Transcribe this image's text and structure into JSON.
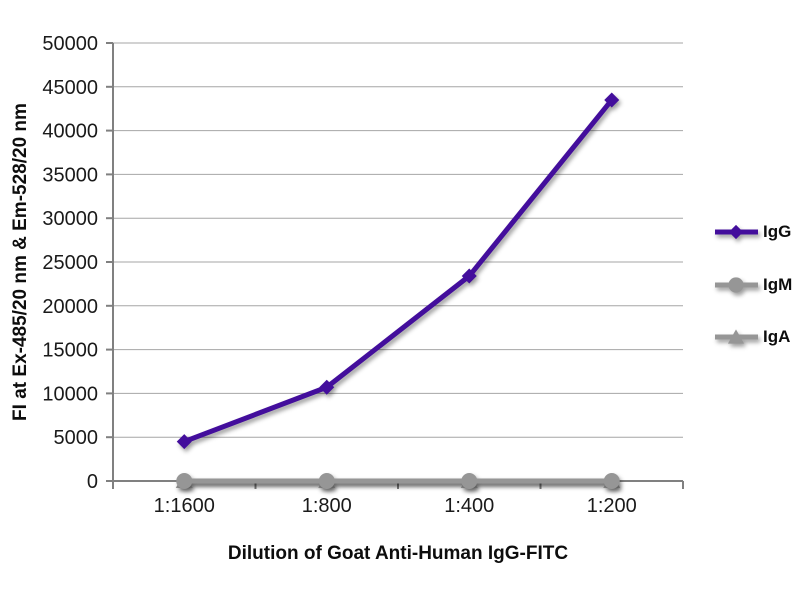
{
  "chart_data": {
    "type": "line",
    "title": "",
    "xlabel": "Dilution of Goat Anti-Human IgG-FITC",
    "ylabel": "FI at Ex-485/20 nm & Em-528/20 nm",
    "categories": [
      "1:1600",
      "1:800",
      "1:400",
      "1:200"
    ],
    "series": [
      {
        "name": "IgG",
        "color": "#430E9C",
        "marker": "diamond",
        "values": [
          4500,
          10700,
          23400,
          43500
        ]
      },
      {
        "name": "IgM",
        "color": "#969696",
        "marker": "circle",
        "values": [
          0,
          0,
          0,
          0
        ]
      },
      {
        "name": "IgA",
        "color": "#969696",
        "marker": "triangle",
        "values": [
          0,
          0,
          0,
          0
        ]
      }
    ],
    "ylim": [
      0,
      50000
    ],
    "ytick_step": 5000,
    "ytick_labels": [
      "0",
      "5000",
      "10000",
      "15000",
      "20000",
      "25000",
      "30000",
      "35000",
      "40000",
      "45000",
      "50000"
    ],
    "grid": true,
    "legend_position": "right",
    "colors": {
      "axis": "#808080",
      "grid": "#A6A6A6",
      "tick_text": "#1a1a1a",
      "title_text": "#0d0d0d",
      "background": "#ffffff"
    }
  }
}
